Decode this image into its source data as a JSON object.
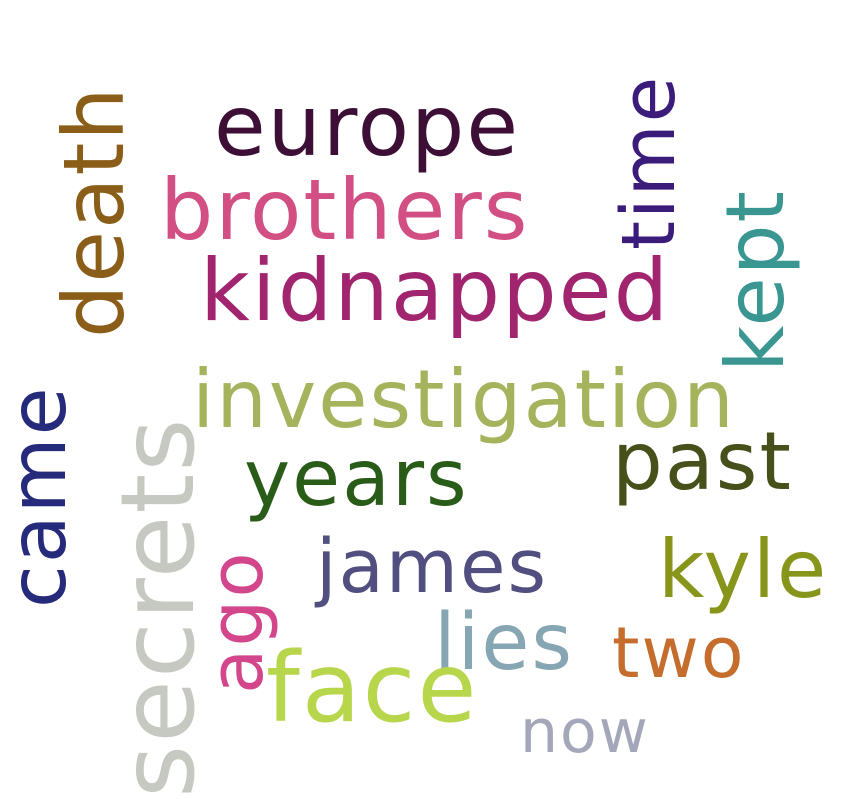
{
  "words": [
    {
      "key": "europe",
      "text": "europe",
      "color": "#3d0f36"
    },
    {
      "key": "brothers",
      "text": "brothers",
      "color": "#d24f84"
    },
    {
      "key": "kidnapped",
      "text": "kidnapped",
      "color": "#a1246f"
    },
    {
      "key": "investigation",
      "text": "investigation",
      "color": "#a5b45c"
    },
    {
      "key": "years",
      "text": "years",
      "color": "#2a5c19"
    },
    {
      "key": "past",
      "text": "past",
      "color": "#46501a"
    },
    {
      "key": "james",
      "text": "james",
      "color": "#514f80"
    },
    {
      "key": "kyle",
      "text": "kyle",
      "color": "#87961a"
    },
    {
      "key": "lies",
      "text": "lies",
      "color": "#87a6b3"
    },
    {
      "key": "two",
      "text": "two",
      "color": "#c46d2c"
    },
    {
      "key": "face",
      "text": "face",
      "color": "#b7d64b"
    },
    {
      "key": "now",
      "text": "now",
      "color": "#a4a6ba"
    },
    {
      "key": "time",
      "text": "time",
      "color": "#3b1c7a"
    },
    {
      "key": "kept",
      "text": "kept",
      "color": "#3a9690"
    },
    {
      "key": "death",
      "text": "death",
      "color": "#8a5e19"
    },
    {
      "key": "came",
      "text": "came",
      "color": "#262a7a"
    },
    {
      "key": "secrets",
      "text": "secrets",
      "color": "#c6c8c2"
    },
    {
      "key": "ago",
      "text": "ago",
      "color": "#d4468b"
    }
  ]
}
